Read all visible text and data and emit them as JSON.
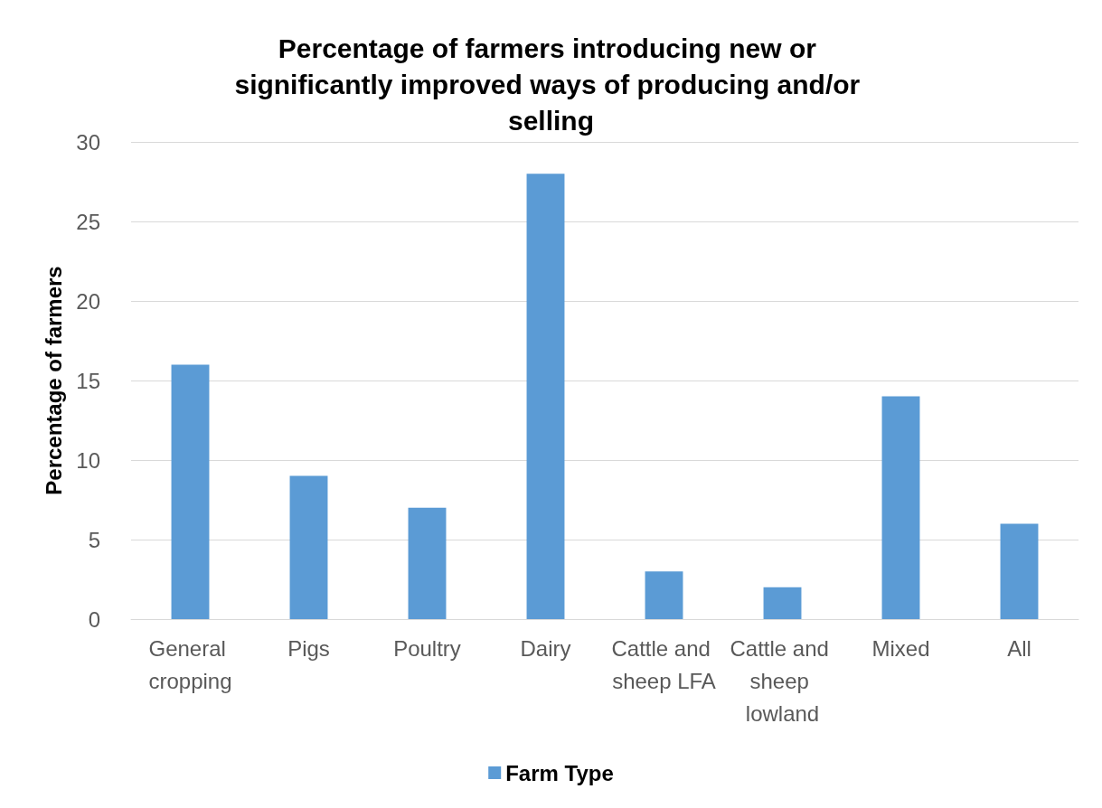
{
  "chart_data": {
    "type": "bar",
    "title": "Percentage of farmers introducing new or significantly improved ways of producing and/or selling",
    "ylabel": "Percentage of farmers",
    "categories": [
      "General cropping",
      "Pigs",
      "Poultry",
      "Dairy",
      "Cattle and sheep LFA",
      "Cattle and sheep lowland",
      "Mixed",
      "All"
    ],
    "series": [
      {
        "name": "Farm Type",
        "color": "#5b9bd5",
        "values": [
          16,
          9,
          7,
          28,
          3,
          2,
          14,
          6
        ]
      }
    ],
    "ylim": [
      0,
      30
    ],
    "yticks": [
      0,
      5,
      10,
      15,
      20,
      25,
      30
    ],
    "grid": "y",
    "legend": "bottom"
  }
}
